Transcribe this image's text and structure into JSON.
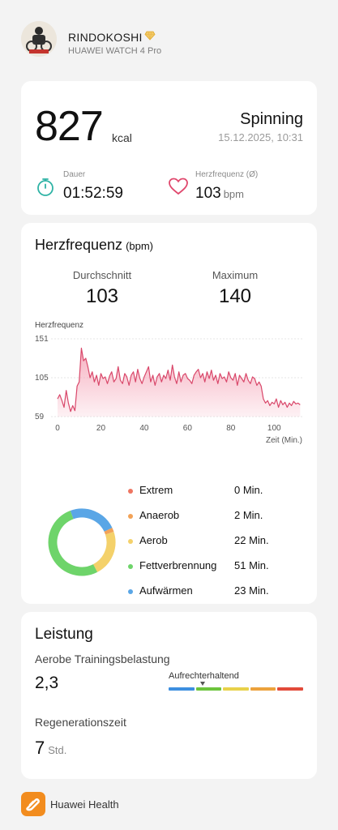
{
  "profile": {
    "name": "RINDOKOSHI",
    "device": "HUAWEI WATCH 4 Pro"
  },
  "summary": {
    "kcal": "827",
    "kcal_unit": "kcal",
    "workout_type": "Spinning",
    "date": "15.12.2025, 10:31",
    "duration_label": "Dauer",
    "duration": "01:52:59",
    "hr_avg_label": "Herzfrequenz (Ø)",
    "hr_avg": "103",
    "hr_unit": "bpm"
  },
  "heart_rate": {
    "title": "Herzfrequenz",
    "unit": "(bpm)",
    "avg_label": "Durchschnitt",
    "avg": "103",
    "max_label": "Maximum",
    "max": "140",
    "chart_label": "Herzfrequenz",
    "x_axis_label": "Zeit (Min.)"
  },
  "chart_data": {
    "type": "area",
    "ylabel": "Herzfrequenz",
    "xlabel": "Zeit (Min.)",
    "ylim": [
      59,
      151
    ],
    "xlim": [
      -3,
      113
    ],
    "y_ticks": [
      151,
      105,
      59
    ],
    "x_ticks": [
      0,
      20,
      40,
      60,
      80,
      100
    ],
    "line_color": "#d9476a",
    "fill_color": "#f5a3b6",
    "x": [
      0,
      1,
      2,
      3,
      4,
      5,
      6,
      7,
      8,
      9,
      10,
      11,
      12,
      13,
      14,
      15,
      16,
      17,
      18,
      19,
      20,
      21,
      22,
      23,
      24,
      25,
      26,
      27,
      28,
      29,
      30,
      31,
      32,
      33,
      34,
      35,
      36,
      37,
      38,
      39,
      40,
      41,
      42,
      43,
      44,
      45,
      46,
      47,
      48,
      49,
      50,
      51,
      52,
      53,
      54,
      55,
      56,
      57,
      58,
      59,
      60,
      61,
      62,
      63,
      64,
      65,
      66,
      67,
      68,
      69,
      70,
      71,
      72,
      73,
      74,
      75,
      76,
      77,
      78,
      79,
      80,
      81,
      82,
      83,
      84,
      85,
      86,
      87,
      88,
      89,
      90,
      91,
      92,
      93,
      94,
      95,
      96,
      97,
      98,
      99,
      100,
      101,
      102,
      103,
      104,
      105,
      106,
      107,
      108,
      109,
      110,
      111,
      112
    ],
    "y": [
      80,
      85,
      78,
      70,
      90,
      75,
      65,
      72,
      66,
      95,
      100,
      140,
      125,
      128,
      118,
      105,
      112,
      100,
      108,
      96,
      110,
      104,
      106,
      98,
      107,
      112,
      100,
      104,
      118,
      102,
      98,
      110,
      106,
      96,
      108,
      112,
      100,
      115,
      104,
      98,
      106,
      112,
      118,
      100,
      108,
      96,
      106,
      110,
      100,
      108,
      104,
      114,
      102,
      120,
      106,
      98,
      112,
      100,
      108,
      110,
      104,
      102,
      98,
      108,
      112,
      115,
      105,
      110,
      100,
      112,
      104,
      114,
      102,
      108,
      98,
      110,
      104,
      106,
      100,
      112,
      105,
      102,
      110,
      96,
      108,
      104,
      100,
      110,
      102,
      98,
      106,
      104,
      96,
      100,
      95,
      80,
      75,
      78,
      72,
      76,
      74,
      80,
      70,
      78,
      73,
      76,
      70,
      75,
      72,
      77,
      74,
      75,
      73
    ]
  },
  "zones": [
    {
      "name": "Extrem",
      "time": "0 Min.",
      "minutes": 0,
      "color": "#ee7561"
    },
    {
      "name": "Anaerob",
      "time": "2 Min.",
      "minutes": 2,
      "color": "#f2a257"
    },
    {
      "name": "Aerob",
      "time": "22 Min.",
      "minutes": 22,
      "color": "#f4d16a"
    },
    {
      "name": "Fettverbrennung",
      "time": "51 Min.",
      "minutes": 51,
      "color": "#6ed46a"
    },
    {
      "name": "Aufwärmen",
      "time": "23 Min.",
      "minutes": 23,
      "color": "#5aa6e6"
    }
  ],
  "performance": {
    "title": "Leistung",
    "aerobic_label": "Aerobe Trainingsbelastung",
    "aerobic_value": "2,3",
    "scale_label": "Aufrechterhaltend",
    "scale_level_fraction": 0.25,
    "scale_colors": [
      "#3d8fe0",
      "#6cc43c",
      "#e8d14a",
      "#eca23c",
      "#e24a3a"
    ],
    "regen_label": "Regenerationszeit",
    "regen_value": "7",
    "regen_unit": "Std."
  },
  "footer": {
    "app_name": "Huawei Health"
  }
}
